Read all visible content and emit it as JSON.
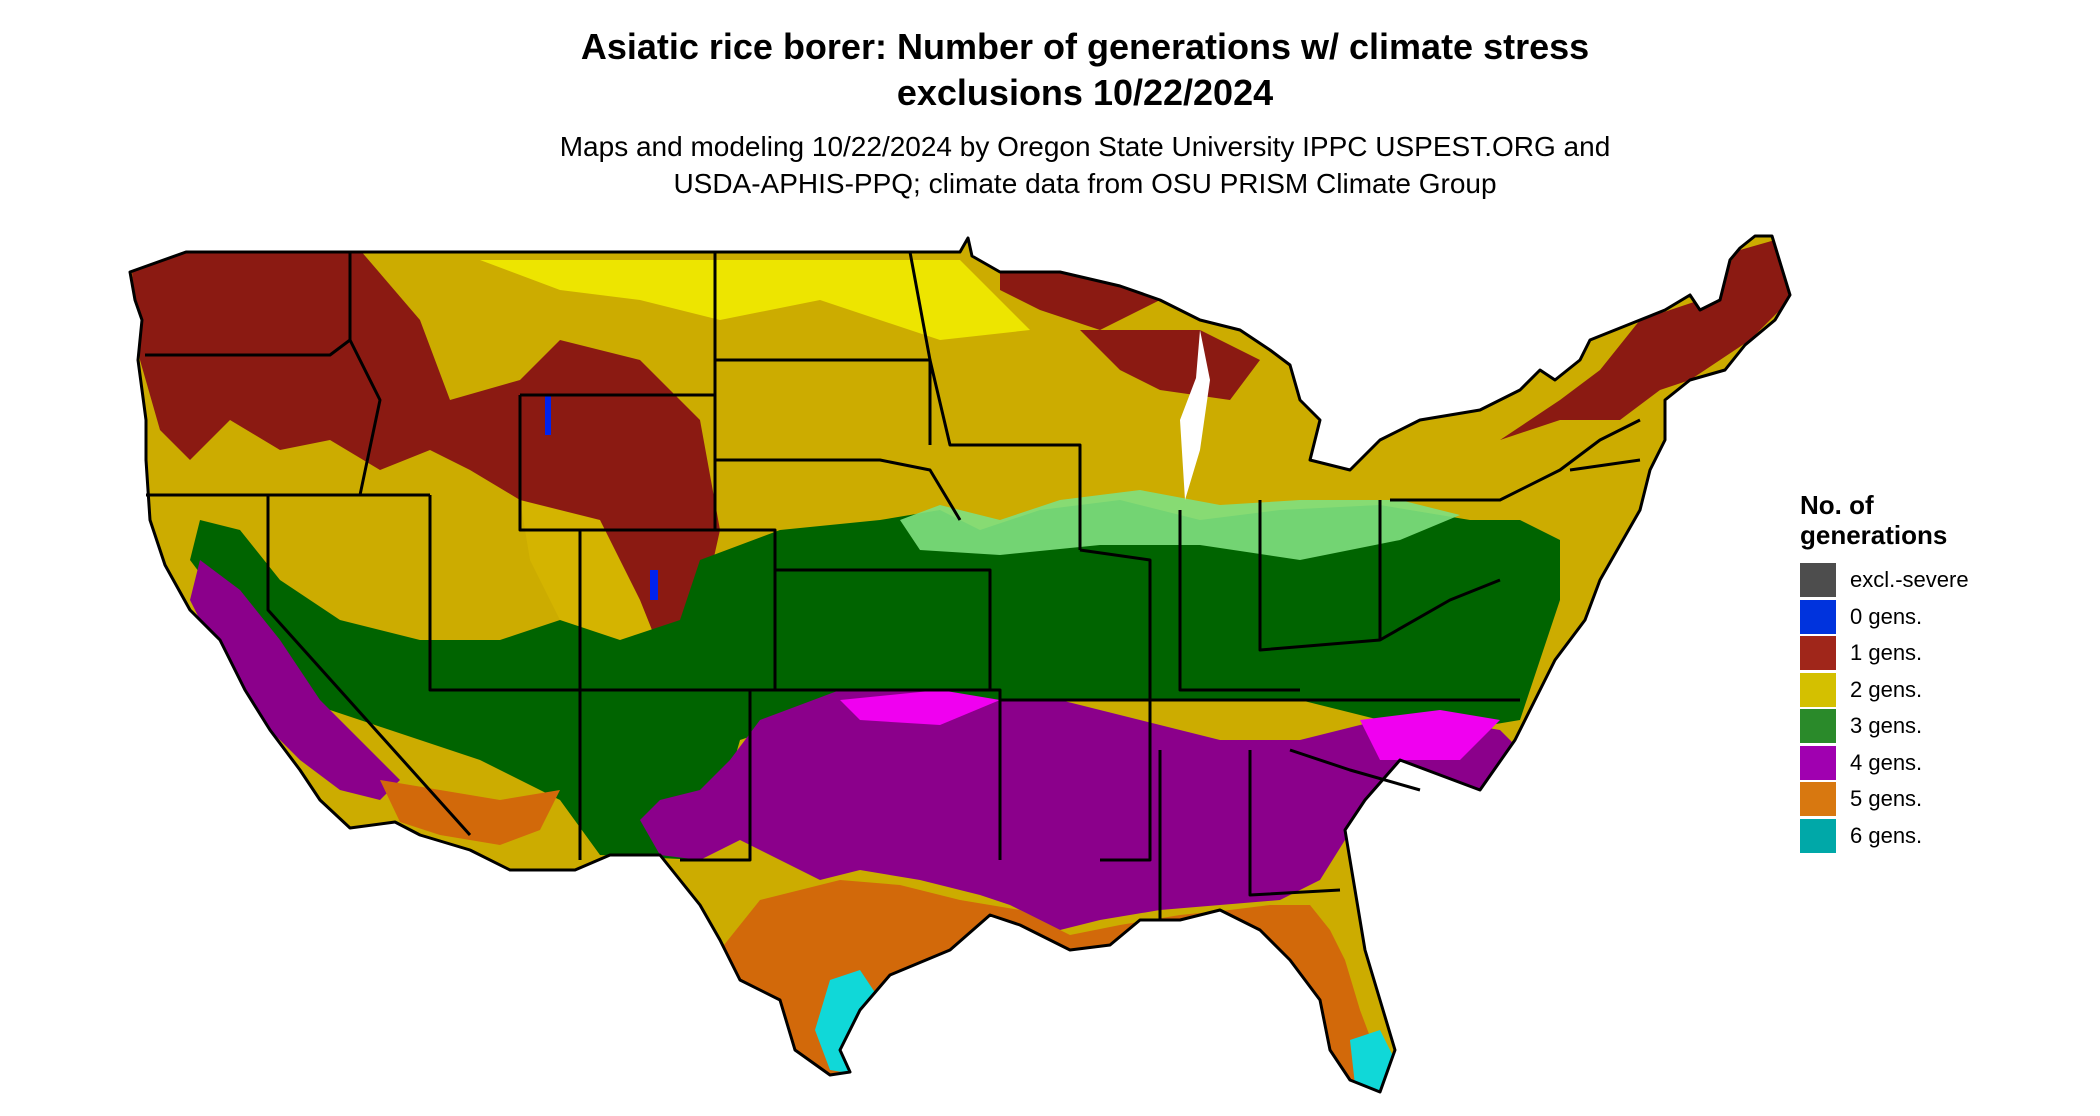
{
  "title_line1": "Asiatic rice borer: Number of generations w/ climate stress",
  "title_line2": "exclusions 10/22/2024",
  "subtitle_line1": "Maps and modeling 10/22/2024 by Oregon State University IPPC USPEST.ORG and",
  "subtitle_line2": "USDA-APHIS-PPQ; climate data from OSU PRISM Climate Group",
  "legend": {
    "title_line1": "No. of",
    "title_line2": "generations",
    "items": [
      {
        "label": "excl.-severe",
        "color": "#4d4d4d"
      },
      {
        "label": "0 gens.",
        "color": "#0033dd"
      },
      {
        "label": "1 gens.",
        "color": "#a0261a"
      },
      {
        "label": "2 gens.",
        "color": "#d4c000"
      },
      {
        "label": "3 gens.",
        "color": "#2a8a2a"
      },
      {
        "label": "4 gens.",
        "color": "#a000b0"
      },
      {
        "label": "5 gens.",
        "color": "#d87810"
      },
      {
        "label": "6 gens.",
        "color": "#00a8a8"
      }
    ]
  },
  "map_colors": {
    "gen1": "#8b1a12",
    "gen2": "#ccac00",
    "gen2_light": "#f2ee00",
    "gen3": "#006400",
    "gen3_light": "#7fe07f",
    "gen4": "#8b008b",
    "gen4_light": "#f000f0",
    "gen5": "#d2690a",
    "gen5_light": "#f0a040",
    "gen6": "#10d8d8",
    "gen0": "#0022ee"
  }
}
